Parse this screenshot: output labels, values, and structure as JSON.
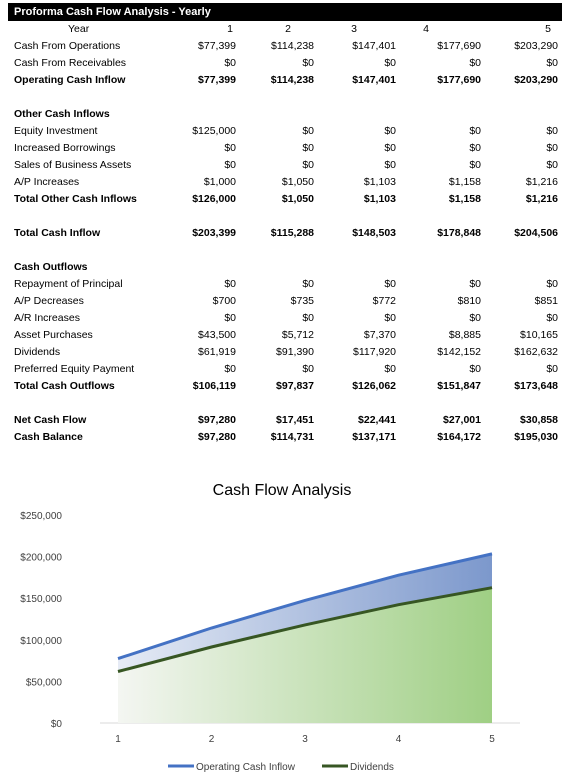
{
  "table": {
    "title": "Proforma Cash Flow Analysis - Yearly",
    "year_label": "Year",
    "years": [
      "1",
      "2",
      "3",
      "4",
      "5"
    ],
    "rows": [
      {
        "label": "Cash From Operations",
        "values": [
          "$77,399",
          "$114,238",
          "$147,401",
          "$177,690",
          "$203,290"
        ],
        "bold": false
      },
      {
        "label": "Cash From Receivables",
        "values": [
          "$0",
          "$0",
          "$0",
          "$0",
          "$0"
        ],
        "bold": false
      },
      {
        "label": "Operating Cash Inflow",
        "values": [
          "$77,399",
          "$114,238",
          "$147,401",
          "$177,690",
          "$203,290"
        ],
        "bold": true
      },
      {
        "label": "",
        "values": [
          "",
          "",
          "",
          "",
          ""
        ],
        "bold": false
      },
      {
        "label": "Other Cash Inflows",
        "values": [
          "",
          "",
          "",
          "",
          ""
        ],
        "bold": true
      },
      {
        "label": "Equity Investment",
        "values": [
          "$125,000",
          "$0",
          "$0",
          "$0",
          "$0"
        ],
        "bold": false
      },
      {
        "label": "Increased Borrowings",
        "values": [
          "$0",
          "$0",
          "$0",
          "$0",
          "$0"
        ],
        "bold": false
      },
      {
        "label": "Sales of Business Assets",
        "values": [
          "$0",
          "$0",
          "$0",
          "$0",
          "$0"
        ],
        "bold": false
      },
      {
        "label": "A/P Increases",
        "values": [
          "$1,000",
          "$1,050",
          "$1,103",
          "$1,158",
          "$1,216"
        ],
        "bold": false
      },
      {
        "label": "Total Other Cash Inflows",
        "values": [
          "$126,000",
          "$1,050",
          "$1,103",
          "$1,158",
          "$1,216"
        ],
        "bold": true
      },
      {
        "label": "",
        "values": [
          "",
          "",
          "",
          "",
          ""
        ],
        "bold": false
      },
      {
        "label": "Total Cash Inflow",
        "values": [
          "$203,399",
          "$115,288",
          "$148,503",
          "$178,848",
          "$204,506"
        ],
        "bold": true
      },
      {
        "label": "",
        "values": [
          "",
          "",
          "",
          "",
          ""
        ],
        "bold": false
      },
      {
        "label": "Cash Outflows",
        "values": [
          "",
          "",
          "",
          "",
          ""
        ],
        "bold": true
      },
      {
        "label": "Repayment of Principal",
        "values": [
          "$0",
          "$0",
          "$0",
          "$0",
          "$0"
        ],
        "bold": false
      },
      {
        "label": "A/P Decreases",
        "values": [
          "$700",
          "$735",
          "$772",
          "$810",
          "$851"
        ],
        "bold": false
      },
      {
        "label": "A/R Increases",
        "values": [
          "$0",
          "$0",
          "$0",
          "$0",
          "$0"
        ],
        "bold": false
      },
      {
        "label": "Asset Purchases",
        "values": [
          "$43,500",
          "$5,712",
          "$7,370",
          "$8,885",
          "$10,165"
        ],
        "bold": false
      },
      {
        "label": "Dividends",
        "values": [
          "$61,919",
          "$91,390",
          "$117,920",
          "$142,152",
          "$162,632"
        ],
        "bold": false
      },
      {
        "label": "Preferred Equity Payment",
        "values": [
          "$0",
          "$0",
          "$0",
          "$0",
          "$0"
        ],
        "bold": false
      },
      {
        "label": "Total Cash Outflows",
        "values": [
          "$106,119",
          "$97,837",
          "$126,062",
          "$151,847",
          "$173,648"
        ],
        "bold": true
      },
      {
        "label": "",
        "values": [
          "",
          "",
          "",
          "",
          ""
        ],
        "bold": false
      },
      {
        "label": "Net Cash Flow",
        "values": [
          "$97,280",
          "$17,451",
          "$22,441",
          "$27,001",
          "$30,858"
        ],
        "bold": true
      },
      {
        "label": "Cash Balance",
        "values": [
          "$97,280",
          "$114,731",
          "$137,171",
          "$164,172",
          "$195,030"
        ],
        "bold": true
      }
    ]
  },
  "chart_data": {
    "type": "area",
    "title": "Cash Flow Analysis",
    "x": [
      "1",
      "2",
      "3",
      "4",
      "5"
    ],
    "ylim": [
      0,
      250000
    ],
    "y_ticks": [
      "$0",
      "$50,000",
      "$100,000",
      "$150,000",
      "$200,000",
      "$250,000"
    ],
    "y_tick_values": [
      0,
      50000,
      100000,
      150000,
      200000,
      250000
    ],
    "grid": false,
    "legend": "bottom",
    "series": [
      {
        "name": "Operating Cash Inflow",
        "values": [
          77399,
          114238,
          147401,
          177690,
          203290
        ],
        "color": "#4472c4"
      },
      {
        "name": "Dividends",
        "values": [
          61919,
          91390,
          117920,
          142152,
          162632
        ],
        "color": "#375623"
      }
    ]
  }
}
